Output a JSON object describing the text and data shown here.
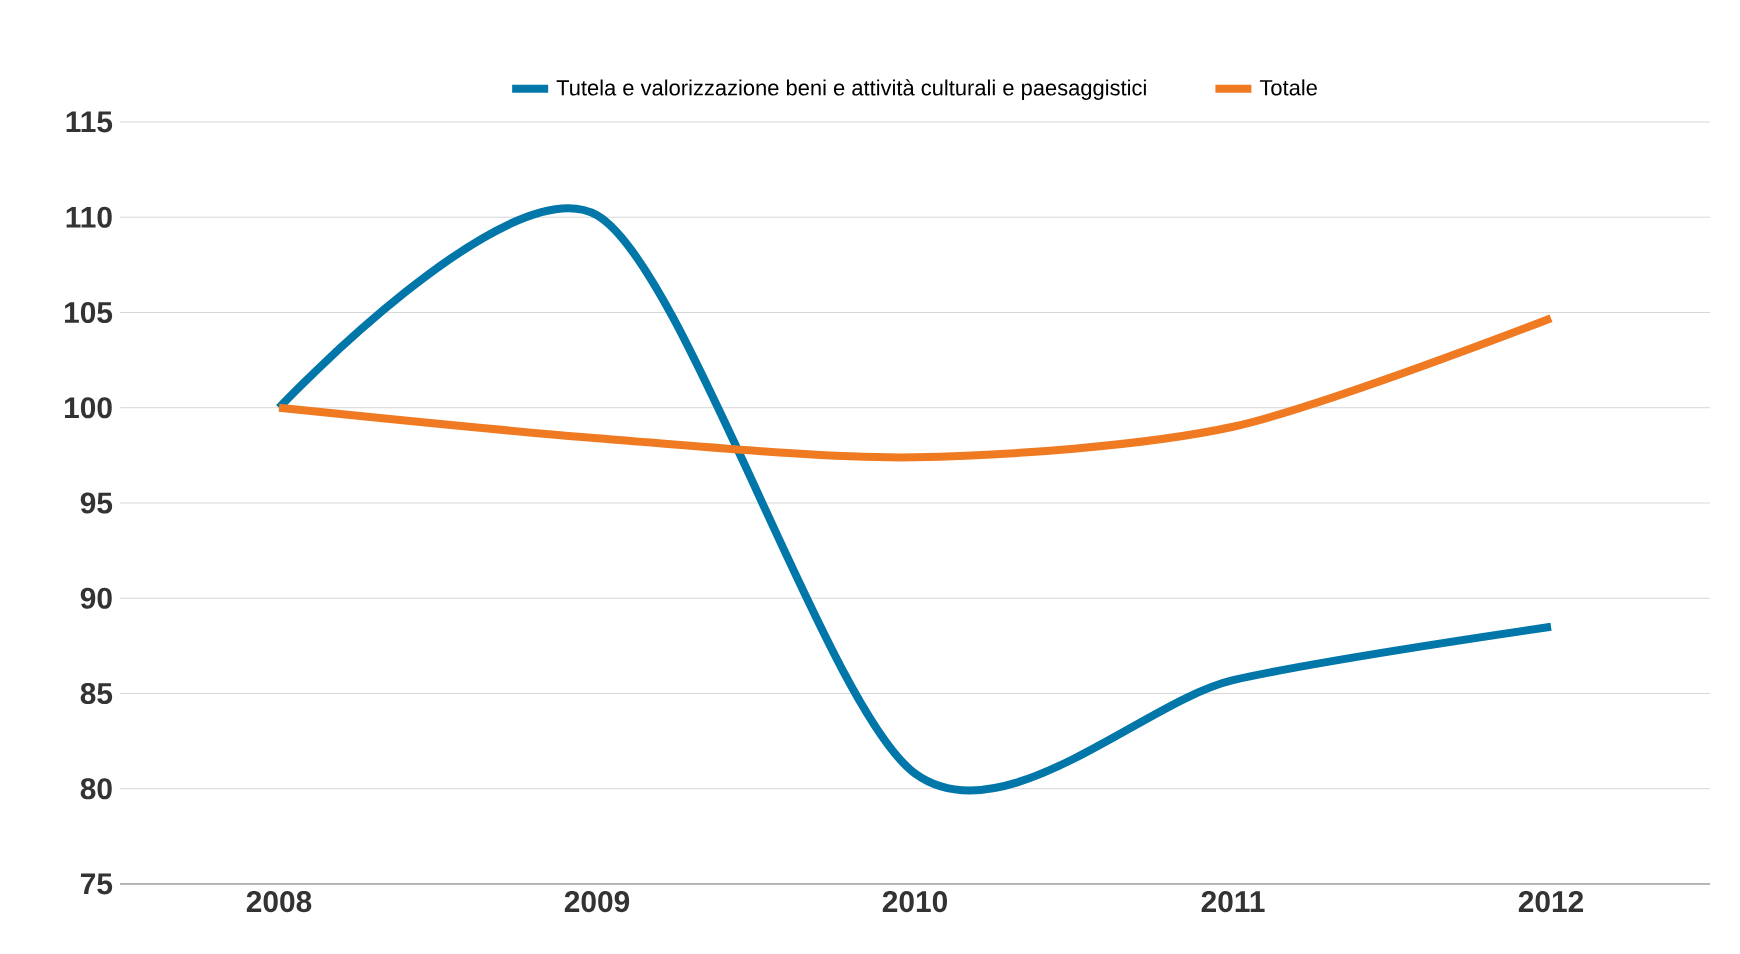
{
  "chart_data": {
    "type": "line",
    "categories": [
      "2008",
      "2009",
      "2010",
      "2011",
      "2012"
    ],
    "series": [
      {
        "name": "Tutela e valorizzazione beni e attività culturali e paesaggistici",
        "color": "#0077a8",
        "values": [
          100,
          110.1,
          80.8,
          85.7,
          88.5
        ]
      },
      {
        "name": "Totale",
        "color": "#f07a22",
        "values": [
          100,
          98.4,
          97.4,
          99.0,
          104.7
        ]
      }
    ],
    "ylim": [
      75,
      115
    ],
    "yticks": [
      75,
      80,
      85,
      90,
      95,
      100,
      105,
      110,
      115
    ],
    "grid": "y",
    "legend": "top",
    "marker": "none",
    "line_style": "solid"
  }
}
